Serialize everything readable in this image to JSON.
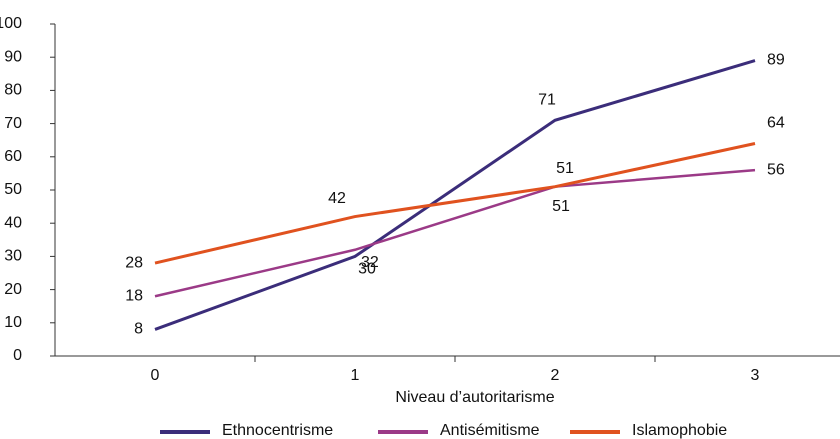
{
  "chart_data": {
    "type": "line",
    "x_label": "Niveau d’autoritarisme",
    "categories": [
      "0",
      "1",
      "2",
      "3"
    ],
    "series": [
      {
        "name": "Ethnocentrisme",
        "color": "#3b2d7a",
        "values": [
          8,
          30,
          71,
          89
        ]
      },
      {
        "name": "Antisémitisme",
        "color": "#9b3a87",
        "values": [
          18,
          32,
          51,
          56
        ]
      },
      {
        "name": "Islamophobie",
        "color": "#e0521f",
        "values": [
          28,
          42,
          51,
          64
        ]
      }
    ],
    "ylim": [
      0,
      100
    ],
    "yticks": [
      0,
      10,
      20,
      30,
      40,
      50,
      60,
      70,
      80,
      90,
      100
    ],
    "legend": "bottom"
  }
}
